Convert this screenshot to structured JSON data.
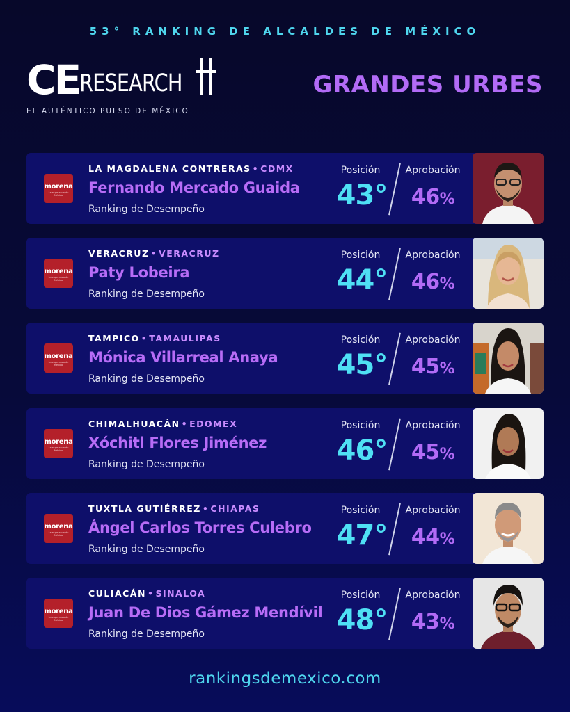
{
  "header": {
    "top_line": "53° RANKING DE ALCALDES DE MÉXICO",
    "logo_ce": "CE",
    "logo_research": "RESEARCH",
    "tagline": "EL AUTÉNTICO PULSO DE MÉXICO",
    "category": "GRANDES URBES"
  },
  "labels": {
    "position": "Posición",
    "approval": "Aprobación",
    "party_name": "morena",
    "party_sub": "La esperanza de México"
  },
  "cards": [
    {
      "city": "LA MAGDALENA CONTRERAS",
      "state": "CDMX",
      "name": "Fernando Mercado Guaida",
      "subtitle": "Ranking de Desempeño",
      "position": "43°",
      "approval": "46",
      "approval_unit": "%",
      "photo_bg": "#7a1e2e"
    },
    {
      "city": "VERACRUZ",
      "state": "VERACRUZ",
      "name": "Paty Lobeira",
      "subtitle": "Ranking de Desempeño",
      "position": "44°",
      "approval": "46",
      "approval_unit": "%",
      "photo_bg": "#e8e4dc"
    },
    {
      "city": "TAMPICO",
      "state": "TAMAULIPAS",
      "name": "Mónica Villarreal Anaya",
      "subtitle": "Ranking de Desempeño",
      "position": "45°",
      "approval": "45",
      "approval_unit": "%",
      "photo_bg": "#d8d4cc"
    },
    {
      "city": "CHIMALHUACÁN",
      "state": "EDOMEX",
      "name": "Xóchitl Flores Jiménez",
      "subtitle": "Ranking de Desempeño",
      "position": "46°",
      "approval": "45",
      "approval_unit": "%",
      "photo_bg": "#f1f1f1"
    },
    {
      "city": "TUXTLA GUTIÉRREZ",
      "state": "CHIAPAS",
      "name": "Ángel Carlos Torres Culebro",
      "subtitle": "Ranking de Desempeño",
      "position": "47°",
      "approval": "44",
      "approval_unit": "%",
      "photo_bg": "#f2e6d6"
    },
    {
      "city": "CULIACÁN",
      "state": "SINALOA",
      "name": "Juan De Dios Gámez Mendívil",
      "subtitle": "Ranking de Desempeño",
      "position": "48°",
      "approval": "43",
      "approval_unit": "%",
      "photo_bg": "#e6e6e6"
    }
  ],
  "footer": {
    "site": "rankingsdemexico.com"
  },
  "colors": {
    "accent_cyan": "#4fe0f4",
    "accent_purple": "#b26bf6",
    "card_bg": "#0e0f6a",
    "party_red": "#b4202a"
  }
}
